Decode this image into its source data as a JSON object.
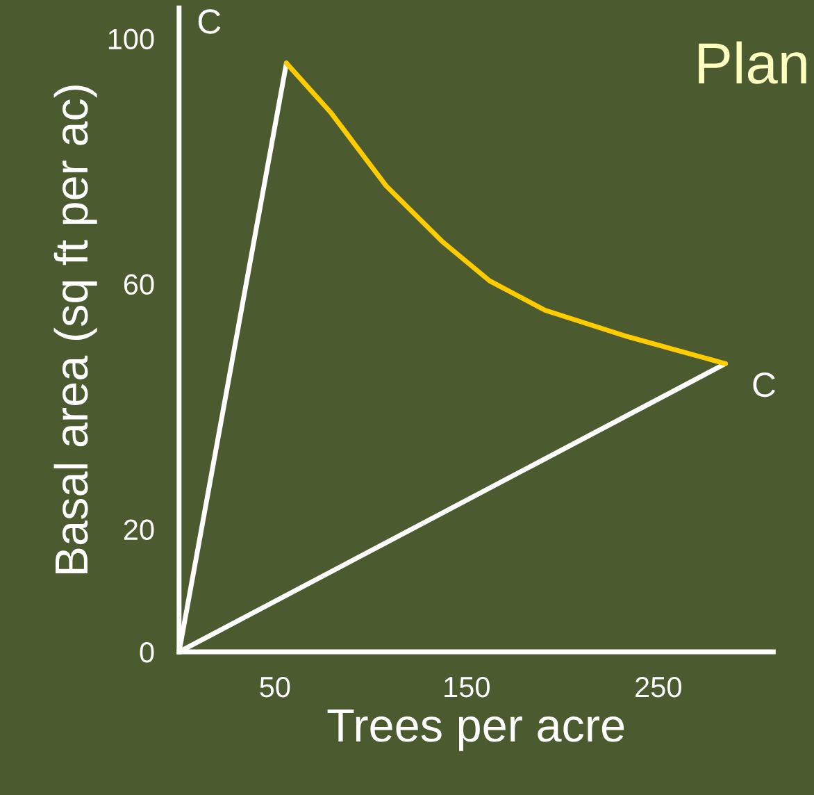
{
  "chart_data": {
    "type": "line",
    "xlabel": "Trees per acre",
    "ylabel": "Basal area (sq ft per ac)",
    "xlim": [
      0,
      310
    ],
    "ylim": [
      0,
      105
    ],
    "xticks": [
      50,
      150,
      250
    ],
    "yticks": [
      0,
      20,
      60,
      100
    ],
    "grid": false,
    "legend": false,
    "marker": "none",
    "line_style": "solid",
    "series": [
      {
        "color": "#ffffff",
        "x": [
          0,
          56
        ],
        "values": [
          0,
          96
        ]
      },
      {
        "color": "#ffffff",
        "x": [
          0,
          285
        ],
        "values": [
          0,
          47
        ]
      },
      {
        "color": "#ffcc00",
        "x": [
          56,
          79,
          108,
          137,
          162,
          191,
          234,
          285
        ],
        "values": [
          96,
          88,
          76,
          67,
          60.5,
          55.7,
          51.4,
          47
        ]
      }
    ],
    "annotations": [
      {
        "text": "C",
        "x": 56,
        "y": 96
      },
      {
        "text": "C",
        "x": 285,
        "y": 47
      },
      "Plan"
    ]
  }
}
